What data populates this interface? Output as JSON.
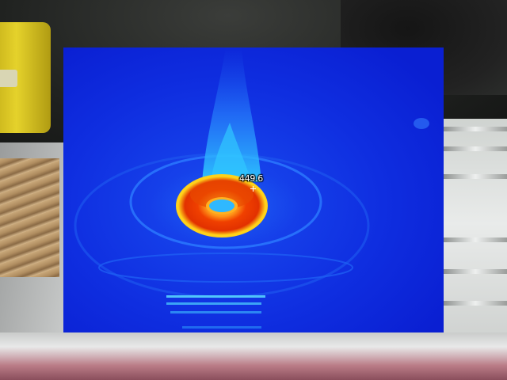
{
  "thermal_view": {
    "spot_temperature": "449.6",
    "palette": {
      "cold": "#0a1fd8",
      "background": "#0f2ee0",
      "cool": "#1e64f0",
      "mid": "#2fd0ff",
      "warm": "#ffd21a",
      "hot": "#ff4a00",
      "hottest": "#e23100"
    }
  },
  "icons": {
    "crosshair": "spot-crosshair-icon"
  }
}
